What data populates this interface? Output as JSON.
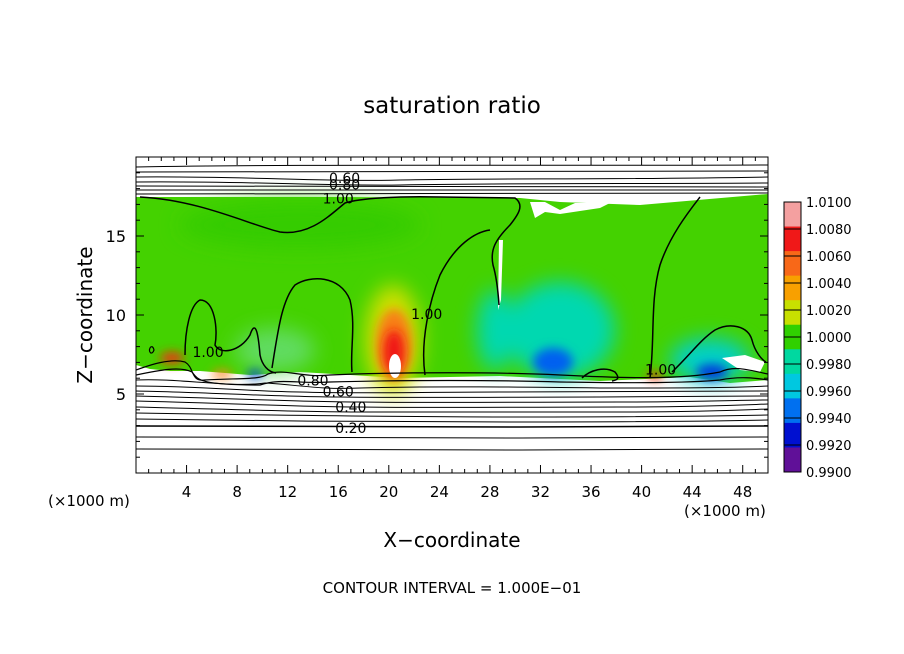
{
  "chart_data": {
    "type": "heatmap",
    "title": "saturation ratio",
    "xlabel": "X−coordinate",
    "ylabel": "Z−coordinate",
    "x_unit_left": "(×1000 m)",
    "x_unit_right": "(×1000 m)",
    "xlim": [
      0,
      50
    ],
    "ylim": [
      0,
      20
    ],
    "x_ticks": [
      4,
      8,
      12,
      16,
      20,
      24,
      28,
      32,
      36,
      40,
      44,
      48
    ],
    "x_tick_labels": [
      "4",
      "8",
      "12",
      "16",
      "20",
      "24",
      "28",
      "32",
      "36",
      "40",
      "44",
      "48"
    ],
    "y_ticks": [
      5,
      10,
      15
    ],
    "y_tick_labels": [
      "5",
      "10",
      "15"
    ],
    "colorbar": {
      "range": [
        0.99,
        1.01
      ],
      "labels": [
        "1.0100",
        "1.0080",
        "1.0060",
        "1.0040",
        "1.0020",
        "1.0000",
        "0.9980",
        "0.9960",
        "0.9940",
        "0.9920",
        "0.9900"
      ],
      "colors": [
        "#f4a0a0",
        "#f01818",
        "#f86818",
        "#f8a000",
        "#c8e000",
        "#30d000",
        "#00d8a0",
        "#00c8e0",
        "#0070f0",
        "#0010d0",
        "#601098"
      ]
    },
    "contours": [
      {
        "label": "0.60",
        "x": 16.5,
        "y": 18.6
      },
      {
        "label": "0.80",
        "x": 16.5,
        "y": 18.2
      },
      {
        "label": "1.00",
        "x": 16.0,
        "y": 17.3
      },
      {
        "label": "1.00",
        "x": 23.0,
        "y": 10.0
      },
      {
        "label": "1.00",
        "x": 5.7,
        "y": 7.6
      },
      {
        "label": "1.00",
        "x": 41.5,
        "y": 6.5
      },
      {
        "label": "0.80",
        "x": 14.0,
        "y": 5.8
      },
      {
        "label": "0.60",
        "x": 16.0,
        "y": 5.1
      },
      {
        "label": "0.40",
        "x": 17.0,
        "y": 4.1
      },
      {
        "label": "0.20",
        "x": 17.0,
        "y": 2.8
      }
    ],
    "footer": "CONTOUR INTERVAL = 1.000E−01"
  }
}
